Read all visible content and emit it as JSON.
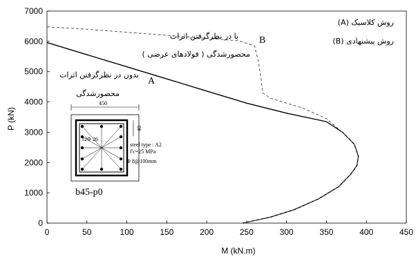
{
  "chart_data": {
    "type": "line",
    "xlabel": "M (kN.m)",
    "ylabel": "P (kN)",
    "xlim": [
      0,
      450
    ],
    "ylim": [
      0,
      7000
    ],
    "x_ticks": [
      "0",
      "50",
      "100",
      "150",
      "200",
      "250",
      "300",
      "350",
      "400",
      "450"
    ],
    "y_ticks": [
      "0",
      "1000",
      "2000",
      "3000",
      "4000",
      "5000",
      "6000",
      "7000"
    ],
    "grid": false,
    "series": [
      {
        "name": "A",
        "style": "solid",
        "color": "#000000",
        "points": [
          [
            0,
            5960
          ],
          [
            50,
            5560
          ],
          [
            100,
            5160
          ],
          [
            150,
            4760
          ],
          [
            200,
            4360
          ],
          [
            250,
            3960
          ],
          [
            300,
            3630
          ],
          [
            350,
            3350
          ],
          [
            370,
            3000
          ],
          [
            385,
            2600
          ],
          [
            390,
            2200
          ],
          [
            388,
            1900
          ],
          [
            380,
            1600
          ],
          [
            365,
            1200
          ],
          [
            340,
            800
          ],
          [
            310,
            450
          ],
          [
            280,
            200
          ],
          [
            245,
            0
          ]
        ]
      },
      {
        "name": "B",
        "style": "dashed",
        "color": "#555555",
        "points": [
          [
            0,
            6480
          ],
          [
            50,
            6400
          ],
          [
            100,
            6300
          ],
          [
            150,
            6200
          ],
          [
            200,
            6100
          ],
          [
            240,
            6020
          ],
          [
            260,
            5850
          ],
          [
            265,
            5300
          ],
          [
            268,
            4800
          ],
          [
            270,
            4300
          ],
          [
            280,
            4120
          ],
          [
            320,
            3800
          ],
          [
            350,
            3450
          ],
          [
            370,
            3000
          ],
          [
            385,
            2600
          ],
          [
            390,
            2200
          ],
          [
            388,
            1900
          ],
          [
            380,
            1600
          ],
          [
            365,
            1200
          ],
          [
            340,
            800
          ],
          [
            310,
            450
          ],
          [
            280,
            200
          ],
          [
            245,
            0
          ]
        ]
      }
    ],
    "legend": [
      "(A) روش كلاسيک",
      "(B) روش پيشنهادى"
    ],
    "curve_labels": [
      "A",
      "B"
    ],
    "annotations": [
      "با در نظرگرفتن اثرات",
      "محصورشدگى ( فولادهاى عرضى )",
      "بدون در نظرگرفتن اثرات",
      "محصورشدگى"
    ],
    "inset": {
      "dimension_width": "450",
      "dimension_cover": "40",
      "bar_label": "12Φ 26",
      "steel_type": "steel type : A2",
      "concrete": "f'c=25 MPa",
      "stirrup": "Φ 8@100mm",
      "caption": "b45-p0"
    }
  }
}
